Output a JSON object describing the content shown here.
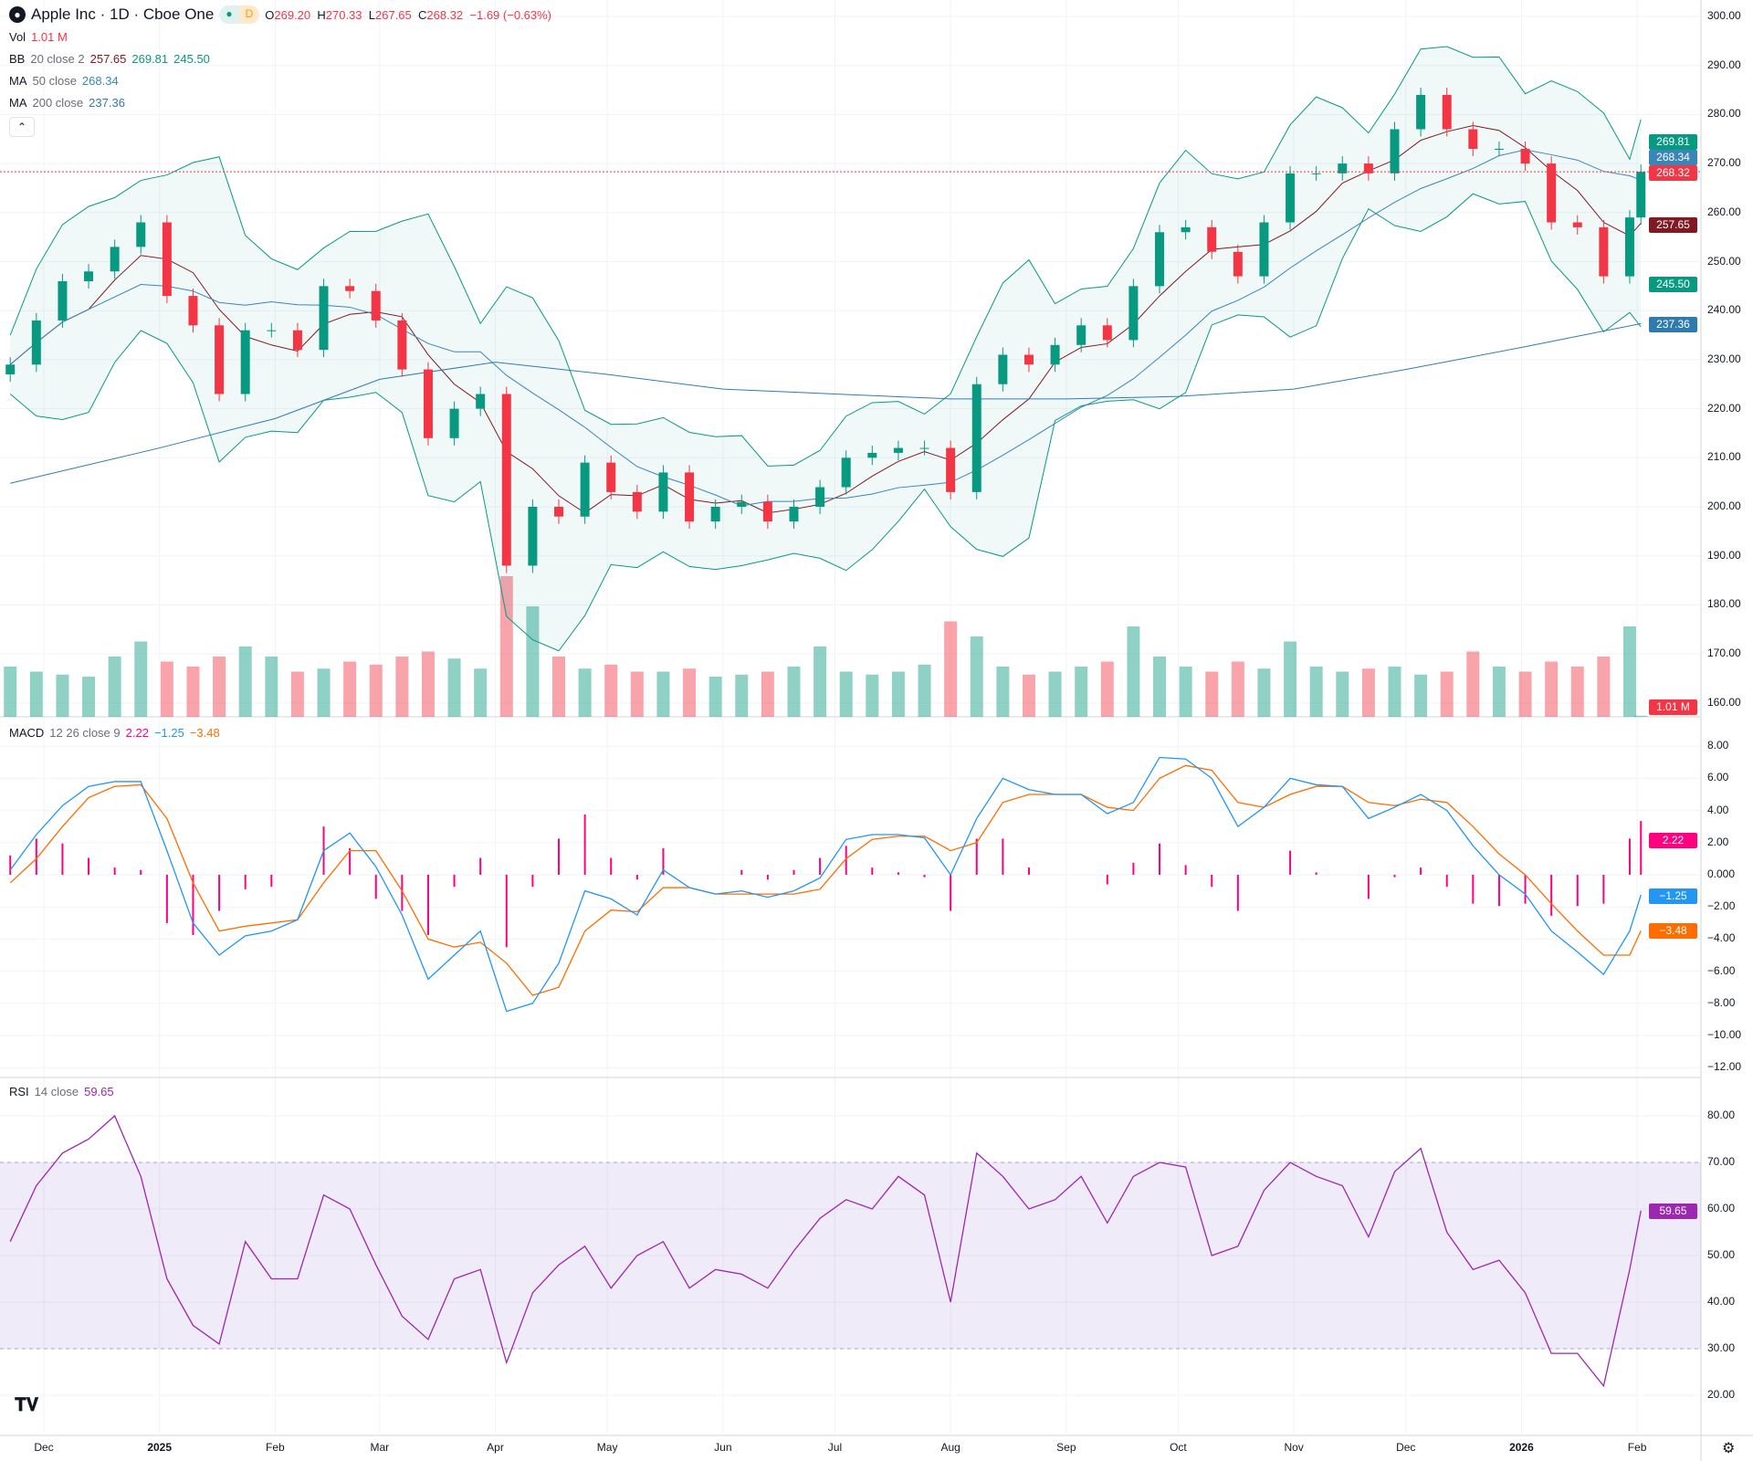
{
  "header": {
    "title": "Apple Inc · 1D · Cboe One",
    "interval_badge": "D",
    "open_label": "O",
    "open": "269.20",
    "high_label": "H",
    "high": "270.33",
    "low_label": "L",
    "low": "267.65",
    "close_label": "C",
    "close": "268.32",
    "change": "−1.69 (−0.63%)"
  },
  "indicators": {
    "vol": {
      "label": "Vol",
      "value": "1.01 M"
    },
    "bb": {
      "label": "BB",
      "params": "20 close 2",
      "basis": "257.65",
      "upper": "269.81",
      "lower": "245.50"
    },
    "ma50": {
      "label": "MA",
      "params": "50 close",
      "value": "268.34"
    },
    "ma200": {
      "label": "MA",
      "params": "200 close",
      "value": "237.36"
    },
    "macd": {
      "label": "MACD",
      "params": "12 26 close 9",
      "hist": "2.22",
      "macd": "−1.25",
      "signal": "−3.48"
    },
    "rsi": {
      "label": "RSI",
      "params": "14 close",
      "value": "59.65"
    }
  },
  "colors": {
    "up": "#089981",
    "down": "#f23645",
    "bb_band": "#089981",
    "bb_basis": "#801922",
    "ma50": "#3a86b8",
    "ma200": "#2f7bb0",
    "macd": "#2196f3",
    "signal": "#ff6d00",
    "hist": "#ff0080",
    "rsi": "#7e57c2"
  },
  "icons": {
    "collapse": "chevron-up-icon",
    "brand": "tradingview-logo",
    "settings": "gear-icon"
  },
  "chart_data": [
    {
      "type": "candlestick",
      "title": "Apple Inc · 1D · Cboe One",
      "ylim": [
        160,
        300
      ],
      "yticks": [
        "300.00",
        "290.00",
        "280.00",
        "270.00",
        "260.00",
        "250.00",
        "240.00",
        "230.00",
        "220.00",
        "210.00",
        "200.00",
        "190.00",
        "180.00",
        "170.00",
        "160.00"
      ],
      "xticks": [
        {
          "label": "Dec",
          "date": "2024-12-01"
        },
        {
          "label": "2025",
          "date": "2025-01-01"
        },
        {
          "label": "Feb",
          "date": "2025-02-01"
        },
        {
          "label": "Mar",
          "date": "2025-03-01"
        },
        {
          "label": "Apr",
          "date": "2025-04-01"
        },
        {
          "label": "May",
          "date": "2025-05-01"
        },
        {
          "label": "Jun",
          "date": "2025-06-01"
        },
        {
          "label": "Jul",
          "date": "2025-07-01"
        },
        {
          "label": "Aug",
          "date": "2025-08-01"
        },
        {
          "label": "Sep",
          "date": "2025-09-01"
        },
        {
          "label": "Oct",
          "date": "2025-10-01"
        },
        {
          "label": "Nov",
          "date": "2025-11-01"
        },
        {
          "label": "Dec",
          "date": "2025-12-01"
        },
        {
          "label": "2026",
          "date": "2026-01-01"
        },
        {
          "label": "Feb",
          "date": "2026-02-01"
        }
      ],
      "first_open": 227,
      "dates": [
        "2024-11-22",
        "2024-11-29",
        "2024-12-06",
        "2024-12-13",
        "2024-12-20",
        "2024-12-27",
        "2025-01-03",
        "2025-01-10",
        "2025-01-17",
        "2025-01-24",
        "2025-01-31",
        "2025-02-07",
        "2025-02-14",
        "2025-02-21",
        "2025-02-28",
        "2025-03-07",
        "2025-03-14",
        "2025-03-21",
        "2025-03-28",
        "2025-04-04",
        "2025-04-11",
        "2025-04-18",
        "2025-04-25",
        "2025-05-02",
        "2025-05-09",
        "2025-05-16",
        "2025-05-23",
        "2025-05-30",
        "2025-06-06",
        "2025-06-13",
        "2025-06-20",
        "2025-06-27",
        "2025-07-04",
        "2025-07-11",
        "2025-07-18",
        "2025-07-25",
        "2025-08-01",
        "2025-08-08",
        "2025-08-15",
        "2025-08-22",
        "2025-08-29",
        "2025-09-05",
        "2025-09-12",
        "2025-09-19",
        "2025-09-26",
        "2025-10-03",
        "2025-10-10",
        "2025-10-17",
        "2025-10-24",
        "2025-10-31",
        "2025-11-07",
        "2025-11-14",
        "2025-11-21",
        "2025-11-28",
        "2025-12-05",
        "2025-12-12",
        "2025-12-19",
        "2025-12-26",
        "2026-01-02",
        "2026-01-09",
        "2026-01-16",
        "2026-01-23",
        "2026-01-30",
        "2026-02-02"
      ],
      "close": [
        229,
        238,
        246,
        248,
        253,
        258,
        243,
        237,
        223,
        236,
        236,
        232,
        245,
        244,
        238,
        228,
        214,
        220,
        223,
        188,
        200,
        198,
        209,
        203,
        199,
        207,
        197,
        200,
        201,
        197,
        200,
        204,
        210,
        211,
        212,
        212,
        203,
        225,
        231,
        229,
        233,
        237,
        234,
        245,
        256,
        257,
        252,
        247,
        258,
        268,
        268,
        270,
        268,
        277,
        284,
        277,
        273,
        273,
        270,
        258,
        257,
        247,
        259,
        268.32
      ],
      "volume_m": [
        50,
        45,
        42,
        40,
        60,
        75,
        55,
        50,
        60,
        70,
        60,
        45,
        48,
        55,
        52,
        60,
        65,
        58,
        48,
        140,
        110,
        60,
        48,
        52,
        45,
        45,
        48,
        40,
        42,
        45,
        50,
        70,
        45,
        42,
        45,
        52,
        95,
        80,
        50,
        42,
        45,
        50,
        55,
        90,
        60,
        50,
        45,
        55,
        48,
        75,
        50,
        45,
        48,
        50,
        42,
        45,
        65,
        50,
        45,
        55,
        50,
        60,
        90,
        1.01
      ],
      "ma200": [
        {
          "date": "2024-11-22",
          "v": 204.8
        },
        {
          "date": "2025-01-01",
          "v": 212
        },
        {
          "date": "2025-02-01",
          "v": 218
        },
        {
          "date": "2025-03-01",
          "v": 226
        },
        {
          "date": "2025-04-01",
          "v": 229.5
        },
        {
          "date": "2025-05-01",
          "v": 227
        },
        {
          "date": "2025-06-01",
          "v": 224
        },
        {
          "date": "2025-07-01",
          "v": 223
        },
        {
          "date": "2025-08-01",
          "v": 222
        },
        {
          "date": "2025-09-01",
          "v": 222
        },
        {
          "date": "2025-10-01",
          "v": 222.5
        },
        {
          "date": "2025-11-01",
          "v": 224
        },
        {
          "date": "2025-12-01",
          "v": 228
        },
        {
          "date": "2026-01-01",
          "v": 232.5
        },
        {
          "date": "2026-02-02",
          "v": 237.36
        }
      ]
    },
    {
      "type": "line",
      "title": "MACD 12 26 close 9",
      "ylim": [
        -12,
        8
      ],
      "yticks": [
        "8.00",
        "6.00",
        "4.00",
        "2.00",
        "0.000",
        "−2.00",
        "−4.00",
        "−6.00",
        "−8.00",
        "−10.00",
        "−12.00"
      ],
      "macd": [
        0.3,
        2.5,
        4.3,
        5.5,
        5.8,
        5.8,
        1.5,
        -3,
        -5,
        -3.8,
        -3.5,
        -2.8,
        1.5,
        2.6,
        0.5,
        -2.5,
        -6.5,
        -5,
        -3.5,
        -8.5,
        -8,
        -5.5,
        -1,
        -1.5,
        -2.5,
        0.3,
        -0.8,
        -1.2,
        -1.0,
        -1.4,
        -1.0,
        -0.2,
        2.2,
        2.5,
        2.5,
        2.3,
        0.0,
        3.5,
        6,
        5.3,
        5.0,
        5.0,
        3.8,
        4.5,
        7.3,
        7.2,
        6.0,
        3.0,
        4.2,
        6,
        5.6,
        5.5,
        3.5,
        4.2,
        5.0,
        4.0,
        1.8,
        0.0,
        -1.2,
        -3.5,
        -4.8,
        -6.2,
        -3.5,
        -1.25
      ],
      "signal": [
        -0.5,
        1.0,
        3.0,
        4.8,
        5.5,
        5.6,
        3.5,
        -0.5,
        -3.5,
        -3.2,
        -3.0,
        -2.8,
        -0.5,
        1.5,
        1.5,
        -1.0,
        -4.0,
        -4.5,
        -4.2,
        -5.5,
        -7.5,
        -7.0,
        -3.5,
        -2.2,
        -2.3,
        -0.8,
        -0.8,
        -1.2,
        -1.2,
        -1.2,
        -1.2,
        -0.9,
        1.0,
        2.2,
        2.4,
        2.4,
        1.5,
        2.0,
        4.5,
        5.0,
        5.0,
        5.0,
        4.2,
        4.0,
        6.0,
        6.8,
        6.5,
        4.5,
        4.2,
        5.0,
        5.5,
        5.5,
        4.5,
        4.3,
        4.7,
        4.5,
        3.0,
        1.3,
        0.0,
        -1.8,
        -3.5,
        -5.0,
        -5.0,
        -3.48
      ]
    },
    {
      "type": "line",
      "title": "RSI 14 close",
      "ylim": [
        15,
        85
      ],
      "band": [
        30,
        70
      ],
      "yticks": [
        "80.00",
        "70.00",
        "60.00",
        "50.00",
        "40.00",
        "30.00",
        "20.00"
      ],
      "rsi": [
        53,
        65,
        72,
        75,
        80,
        67,
        45,
        35,
        31,
        53,
        45,
        45,
        63,
        60,
        48,
        37,
        32,
        45,
        47,
        27,
        42,
        48,
        52,
        43,
        50,
        53,
        43,
        47,
        46,
        43,
        51,
        58,
        62,
        60,
        67,
        63,
        40,
        72,
        67,
        60,
        62,
        67,
        57,
        67,
        70,
        69,
        50,
        52,
        64,
        70,
        67,
        65,
        54,
        68,
        73,
        55,
        47,
        49,
        42,
        29,
        29,
        22,
        47,
        59.65
      ]
    }
  ]
}
